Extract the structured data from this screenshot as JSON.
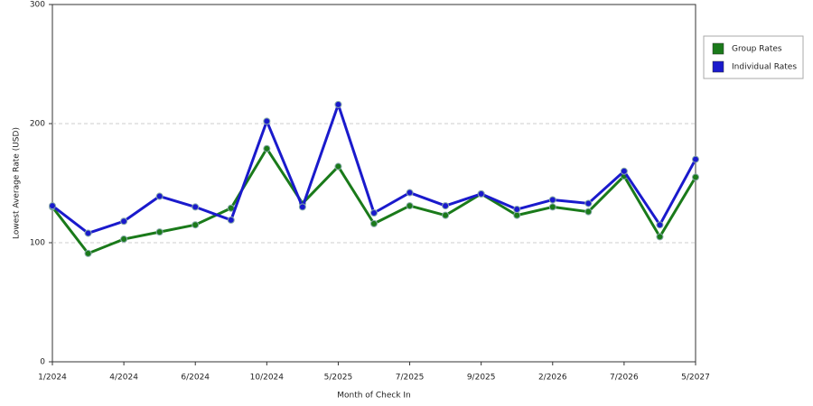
{
  "chart_data": {
    "type": "line",
    "x_label": "Month of Check In",
    "y_label": "Lowest Average Rate (USD)",
    "categories": [
      "1/2024",
      null,
      "4/2024",
      null,
      "6/2024",
      null,
      "10/2024",
      null,
      "5/2025",
      null,
      "7/2025",
      null,
      "9/2025",
      null,
      "2/2026",
      null,
      "7/2026",
      null,
      "5/2027"
    ],
    "series": [
      {
        "name": "Group Rates",
        "color": "#1a7a1a",
        "values": [
          130,
          91,
          103,
          109,
          115,
          129,
          179,
          133,
          164,
          116,
          131,
          123,
          141,
          123,
          130,
          126,
          156,
          105,
          155
        ]
      },
      {
        "name": "Individual Rates",
        "color": "#1a1acc",
        "values": [
          131,
          108,
          118,
          139,
          130,
          119,
          202,
          130,
          216,
          125,
          142,
          131,
          141,
          128,
          136,
          133,
          160,
          115,
          170
        ]
      }
    ],
    "ylim": [
      0,
      300
    ],
    "yticks": [
      0,
      100,
      200,
      300
    ],
    "grid": true,
    "legend": "right"
  }
}
